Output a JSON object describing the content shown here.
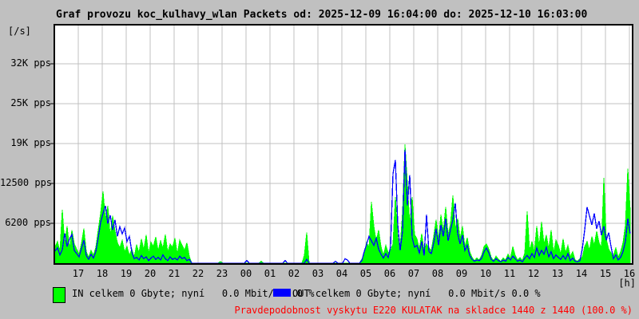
{
  "window": {
    "background": "#c0c0c0",
    "plot_background": "#ffffff",
    "grid_color": "#c0c0c0",
    "border_color": "#000000"
  },
  "title": "Graf provozu koc_kulhavy_wlan Packets od: 2025-12-09 16:04:00 do: 2025-12-10 16:03:00",
  "y_axis": {
    "unit_label": "[/s]"
  },
  "x_axis": {
    "unit_label": "[h]"
  },
  "legend": {
    "in_label": "IN celkem 0 Gbyte; nyní   0.0 Mbit/s 0.0 %",
    "in_color": "#00ff00",
    "out_label": "OUT celkem 0 Gbyte; nyní   0.0 Mbit/s 0.0 %",
    "out_color": "#0000ff"
  },
  "footer": {
    "text": "Pravdepodobnost vyskytu E220 KULATAK na skladce 1440 z 1440 (100.0 %)",
    "color": "#ff0000"
  },
  "chart_data": {
    "type": "line",
    "title": "Graf provozu koc_kulhavy_wlan Packets",
    "period_from": "2025-12-09 16:04:00",
    "period_to": "2025-12-10 16:03:00",
    "ylabel": "packets per second",
    "ylim": [
      0,
      37375
    ],
    "grid": true,
    "sample_interval_minutes": 6,
    "y_ticks": [
      {
        "label": "32K pps",
        "value": 31250
      },
      {
        "label": "25K pps",
        "value": 25000
      },
      {
        "label": "19K pps",
        "value": 18750
      },
      {
        "label": "12500 pps",
        "value": 12500
      },
      {
        "label": "6200 pps",
        "value": 6250
      }
    ],
    "x_tick_hours": [
      "17",
      "18",
      "19",
      "20",
      "21",
      "22",
      "23",
      "00",
      "01",
      "02",
      "03",
      "04",
      "05",
      "06",
      "07",
      "08",
      "09",
      "10",
      "11",
      "12",
      "13",
      "14",
      "15",
      "16"
    ],
    "series": [
      {
        "name": "IN",
        "color": "#00ff00",
        "style": "filled-area",
        "values": [
          2600,
          3400,
          1800,
          8400,
          2900,
          5800,
          2200,
          5200,
          3000,
          2200,
          1400,
          3100,
          5400,
          1800,
          900,
          2000,
          1200,
          2500,
          5200,
          7800,
          11250,
          6800,
          9000,
          4200,
          7400,
          5000,
          3200,
          2400,
          3600,
          1800,
          2600,
          1200,
          2200,
          900,
          2900,
          1600,
          3800,
          2100,
          4400,
          1500,
          3300,
          2600,
          4100,
          1900,
          3500,
          2300,
          4500,
          1700,
          3000,
          2500,
          3900,
          1400,
          3600,
          2800,
          2000,
          3200,
          1100,
          0,
          0,
          0,
          0,
          0,
          0,
          0,
          0,
          0,
          0,
          0,
          0,
          250,
          0,
          0,
          0,
          0,
          0,
          0,
          0,
          0,
          0,
          0,
          0,
          0,
          0,
          0,
          0,
          0,
          300,
          0,
          0,
          0,
          0,
          0,
          0,
          0,
          0,
          0,
          0,
          0,
          0,
          0,
          0,
          0,
          0,
          0,
          1200,
          4800,
          0,
          0,
          0,
          0,
          0,
          0,
          0,
          0,
          0,
          0,
          0,
          0,
          0,
          0,
          0,
          0,
          0,
          0,
          0,
          0,
          0,
          0,
          600,
          1500,
          3200,
          2400,
          9600,
          5800,
          3400,
          5200,
          2600,
          1200,
          2800,
          1600,
          2000,
          3000,
          10400,
          4000,
          2500,
          8000,
          18600,
          12600,
          6000,
          10400,
          4500,
          3800,
          2200,
          4600,
          1800,
          3000,
          2400,
          2000,
          4200,
          6800,
          3600,
          7600,
          5000,
          8800,
          4400,
          6200,
          10600,
          5400,
          7000,
          3800,
          5800,
          2600,
          4000,
          1800,
          900,
          400,
          800,
          500,
          1200,
          2600,
          3000,
          2200,
          900,
          400,
          1100,
          600,
          300,
          800,
          500,
          1400,
          700,
          2600,
          1200,
          500,
          900,
          400,
          1600,
          8100,
          2000,
          3400,
          1800,
          5800,
          2600,
          6500,
          3000,
          4400,
          2200,
          5200,
          1600,
          3600,
          2800,
          1400,
          3800,
          1600,
          2800,
          1000,
          1800,
          500,
          300,
          700,
          900,
          2600,
          3400,
          2000,
          4200,
          2800,
          5000,
          3200,
          2400,
          13400,
          3800,
          2200,
          1600,
          1200,
          2400,
          900,
          1800,
          3200,
          6000,
          14800,
          8200
        ]
      },
      {
        "name": "OUT",
        "color": "#0000ff",
        "style": "line",
        "values": [
          1900,
          2400,
          1300,
          2100,
          4700,
          2600,
          3800,
          4500,
          2000,
          1500,
          1000,
          2300,
          3600,
          1200,
          600,
          1400,
          800,
          1800,
          4000,
          6400,
          7800,
          9000,
          6200,
          7500,
          5200,
          6800,
          4200,
          5700,
          4600,
          5500,
          3400,
          4200,
          1800,
          700,
          900,
          500,
          1200,
          700,
          1000,
          400,
          800,
          1100,
          600,
          900,
          500,
          1300,
          700,
          400,
          1000,
          600,
          800,
          500,
          1100,
          700,
          900,
          400,
          600,
          0,
          0,
          0,
          0,
          0,
          0,
          0,
          0,
          0,
          0,
          0,
          0,
          0,
          0,
          0,
          0,
          0,
          0,
          0,
          0,
          0,
          0,
          0,
          420,
          0,
          0,
          0,
          0,
          0,
          0,
          0,
          0,
          0,
          0,
          0,
          0,
          0,
          0,
          0,
          400,
          0,
          0,
          0,
          0,
          0,
          0,
          0,
          0,
          600,
          0,
          0,
          0,
          0,
          0,
          0,
          0,
          0,
          0,
          0,
          0,
          300,
          0,
          0,
          0,
          700,
          500,
          0,
          0,
          0,
          0,
          0,
          400,
          1800,
          3000,
          4200,
          3500,
          2800,
          3900,
          2200,
          1400,
          800,
          1500,
          900,
          2600,
          14000,
          16200,
          6000,
          2000,
          5000,
          17800,
          9000,
          13800,
          4000,
          2500,
          2800,
          1600,
          3400,
          1200,
          7600,
          1800,
          1500,
          3200,
          5400,
          2800,
          6000,
          4200,
          7000,
          3500,
          5200,
          6800,
          9400,
          4600,
          3000,
          4400,
          2000,
          2800,
          1200,
          600,
          300,
          500,
          400,
          800,
          1800,
          2400,
          1600,
          600,
          300,
          700,
          400,
          200,
          500,
          300,
          900,
          500,
          1100,
          700,
          300,
          500,
          200,
          800,
          1200,
          700,
          1500,
          900,
          2400,
          1200,
          2000,
          1400,
          2500,
          1000,
          1800,
          700,
          1300,
          900,
          600,
          1200,
          600,
          1500,
          400,
          800,
          300,
          200,
          400,
          2200,
          5200,
          8800,
          7400,
          6000,
          7800,
          5400,
          6600,
          4400,
          5800,
          3600,
          4800,
          2600,
          700,
          1300,
          500,
          900,
          1800,
          3400,
          7000,
          4600
        ]
      }
    ]
  }
}
